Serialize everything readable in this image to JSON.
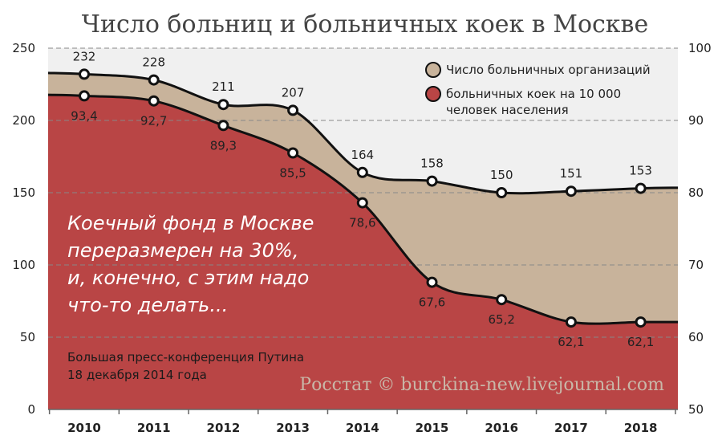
{
  "chart_data": {
    "type": "area",
    "title": "Число больниц и больничных коек в Москве",
    "categories": [
      "2010",
      "2011",
      "2012",
      "2013",
      "2014",
      "2015",
      "2016",
      "2017",
      "2018"
    ],
    "y_left": {
      "ticks": [
        "0",
        "50",
        "100",
        "150",
        "200",
        "250"
      ],
      "ylim": [
        0,
        250
      ]
    },
    "y_right": {
      "ticks": [
        "50",
        "60",
        "70",
        "80",
        "90",
        "100"
      ],
      "ylim": [
        50,
        100
      ]
    },
    "grid": "dashed horizontal",
    "legend_position": "top-right",
    "series": [
      {
        "name": "Число больничных организаций",
        "axis": "left",
        "color": "#c8b39b",
        "values": [
          232,
          228,
          211,
          207,
          164,
          158,
          150,
          151,
          153
        ],
        "labels": [
          "232",
          "228",
          "211",
          "207",
          "164",
          "158",
          "150",
          "151",
          "153"
        ]
      },
      {
        "name": "больничных коек на 10 000 человек населения",
        "name_lines": [
          "больничных коек на 10 000",
          "человек населения"
        ],
        "axis": "right",
        "color": "#b94545",
        "values": [
          93.4,
          92.7,
          89.3,
          85.5,
          78.6,
          67.6,
          65.2,
          62.1,
          62.1
        ],
        "labels": [
          "93,4",
          "92,7",
          "89,3",
          "85,5",
          "78,6",
          "67,6",
          "65,2",
          "62,1",
          "62,1"
        ]
      }
    ]
  },
  "annotation": {
    "quote_lines": [
      "Коечный фонд в Москве",
      "переразмерен на 30%,",
      "и, конечно, с этим надо",
      "что-то делать..."
    ],
    "source_lines": [
      "Большая пресс-конференция Путина",
      "18 декабря 2014 года"
    ]
  },
  "credit": "Росстат © burckina-new.livejournal.com",
  "colors": {
    "plot_bg": "#f0f0f0",
    "line": "#111111",
    "grid": "#888888"
  }
}
